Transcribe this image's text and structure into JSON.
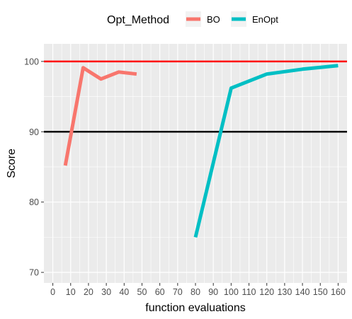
{
  "chart_data": {
    "type": "line",
    "xlabel": "function evaluations",
    "ylabel": "Score",
    "xlim": [
      -5,
      165
    ],
    "ylim": [
      68.5,
      102.5
    ],
    "x_ticks": [
      0,
      10,
      20,
      30,
      40,
      50,
      60,
      70,
      80,
      90,
      100,
      110,
      120,
      130,
      140,
      150,
      160
    ],
    "y_ticks": [
      70,
      80,
      90,
      100
    ],
    "grid": true,
    "legend": {
      "title": "Opt_Method",
      "position": "top"
    },
    "series": [
      {
        "name": "BO",
        "color": "#F8766D",
        "x": [
          7,
          17,
          27,
          37,
          47
        ],
        "y": [
          85.2,
          99.1,
          97.5,
          98.5,
          98.2
        ]
      },
      {
        "name": "EnOpt",
        "color": "#00BFC4",
        "x": [
          80,
          100,
          120,
          140,
          160
        ],
        "y": [
          75.0,
          96.2,
          98.2,
          98.9,
          99.4
        ]
      }
    ],
    "reference_lines": [
      {
        "y": 100,
        "color": "#FF0000"
      },
      {
        "y": 90,
        "color": "#000000"
      }
    ]
  }
}
